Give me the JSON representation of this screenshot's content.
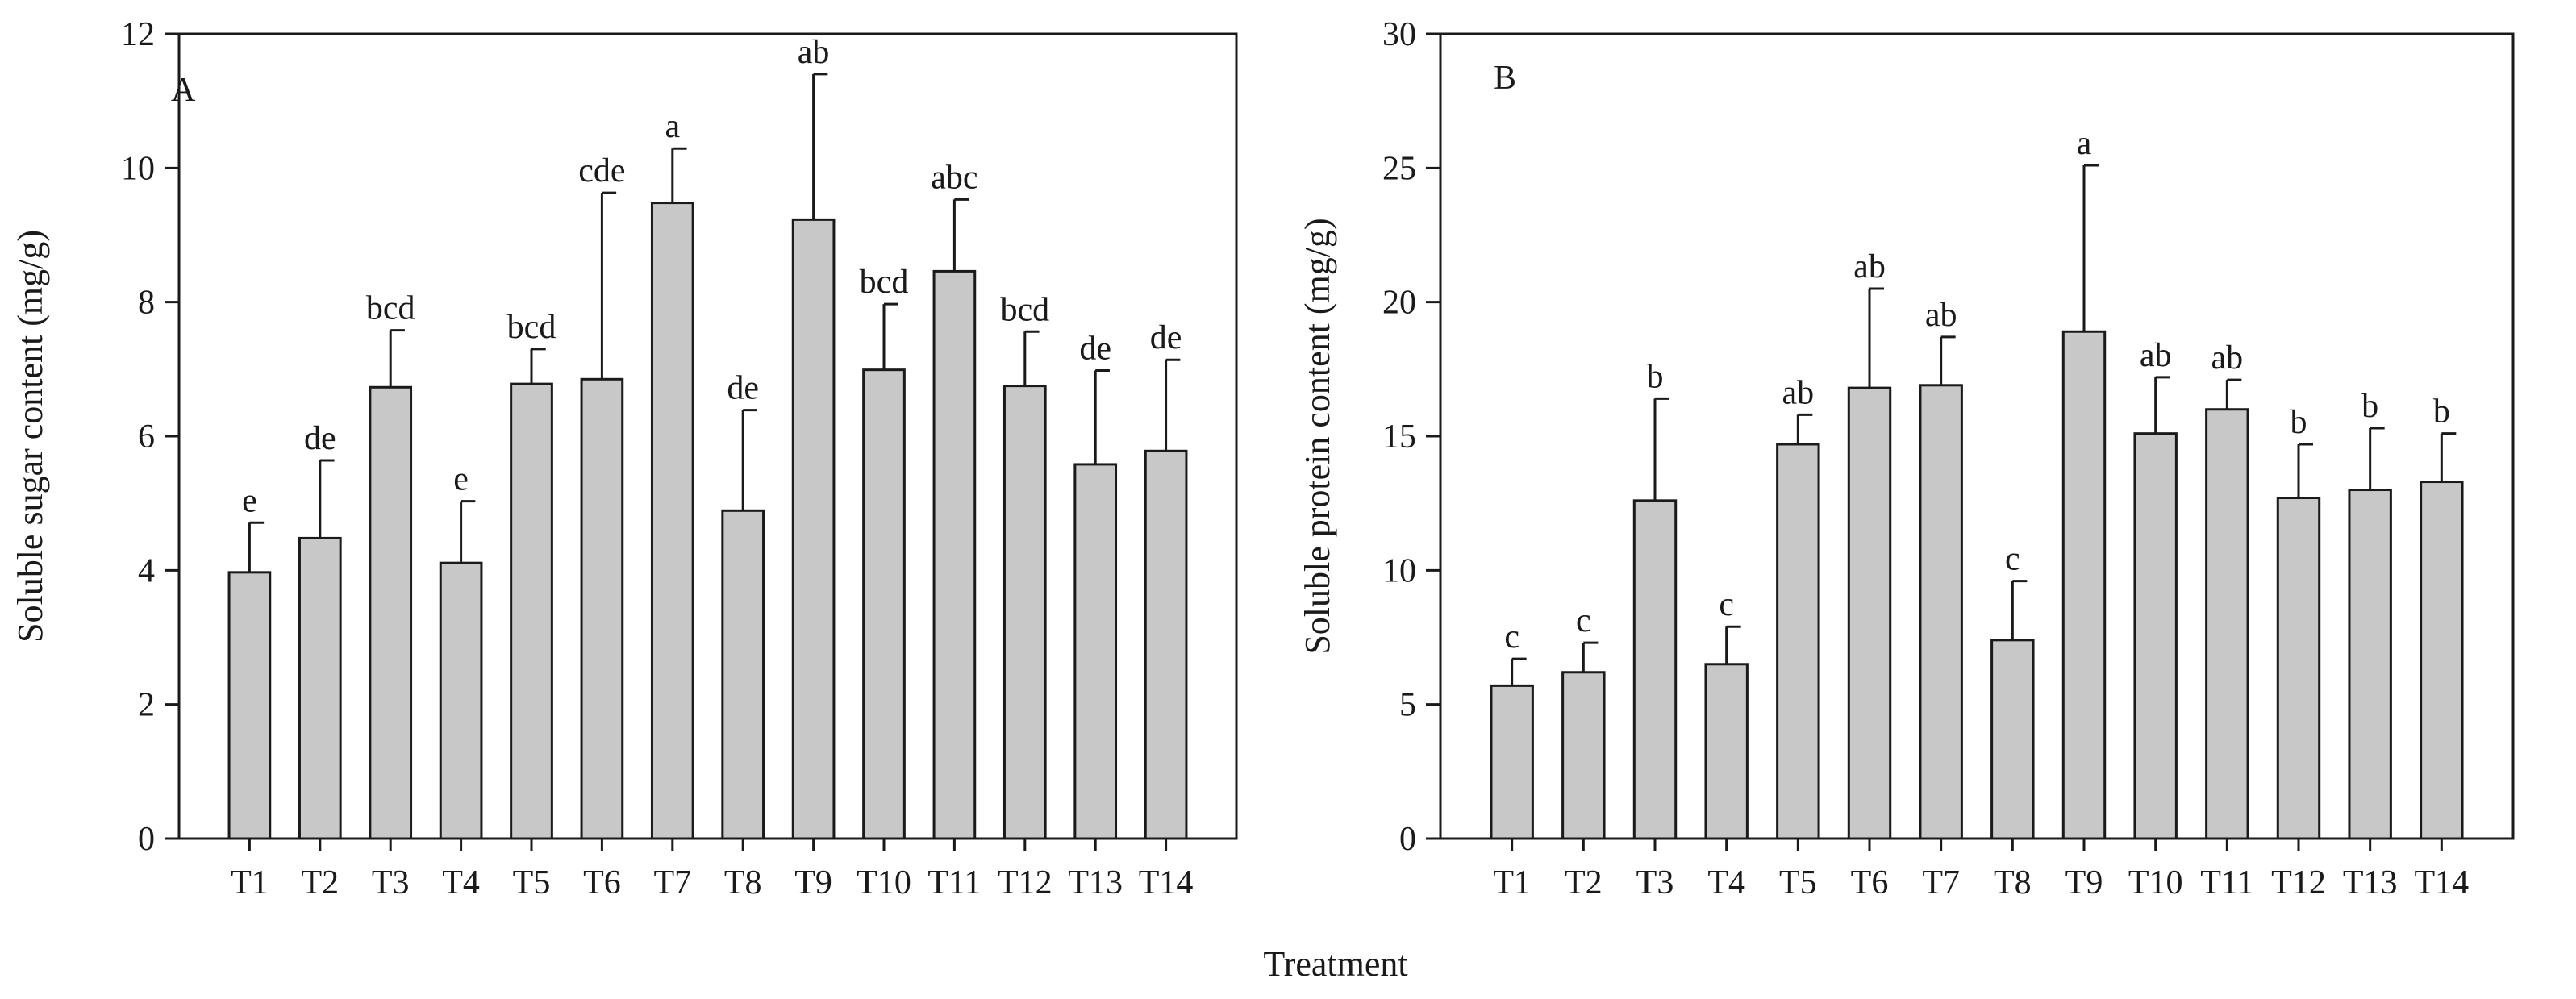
{
  "shared_xlabel": "Treatment",
  "chart_data": [
    {
      "type": "bar",
      "panel_label": "A",
      "ylabel": "Soluble  sugar content (mg/g)",
      "xlabel": "Treatment",
      "ylim": [
        0,
        12
      ],
      "yticks": [
        0,
        2,
        4,
        6,
        8,
        10,
        12
      ],
      "bar_color": "#c8c8c8",
      "categories": [
        "T1",
        "T2",
        "T3",
        "T4",
        "T5",
        "T6",
        "T7",
        "T8",
        "T9",
        "T10",
        "T11",
        "T12",
        "T13",
        "T14"
      ],
      "values": [
        3.97,
        4.48,
        6.73,
        4.11,
        6.78,
        6.85,
        9.48,
        4.89,
        9.23,
        6.99,
        8.46,
        6.75,
        5.58,
        5.78
      ],
      "errors": [
        0.74,
        1.16,
        0.85,
        0.92,
        0.52,
        2.78,
        0.81,
        1.5,
        2.17,
        0.98,
        1.07,
        0.81,
        1.4,
        1.36
      ],
      "significance": [
        "e",
        "de",
        "bcd",
        "e",
        "bcd",
        "cde",
        "a",
        "de",
        "ab",
        "bcd",
        "abc",
        "bcd",
        "de",
        "de"
      ]
    },
    {
      "type": "bar",
      "panel_label": "B",
      "ylabel": "Soluble  protein content (mg/g)",
      "xlabel": "Treatment",
      "ylim": [
        0,
        30
      ],
      "yticks": [
        0,
        5,
        10,
        15,
        20,
        25,
        30
      ],
      "bar_color": "#c8c8c8",
      "categories": [
        "T1",
        "T2",
        "T3",
        "T4",
        "T5",
        "T6",
        "T7",
        "T8",
        "T9",
        "T10",
        "T11",
        "T12",
        "T13",
        "T14"
      ],
      "values": [
        5.7,
        6.2,
        12.6,
        6.5,
        14.7,
        16.8,
        16.9,
        7.4,
        18.9,
        15.1,
        16.0,
        12.7,
        13.0,
        13.3
      ],
      "errors": [
        1.0,
        1.1,
        3.8,
        1.4,
        1.1,
        3.7,
        1.8,
        2.2,
        6.2,
        2.1,
        1.1,
        2.0,
        2.3,
        1.8
      ],
      "significance": [
        "c",
        "c",
        "b",
        "c",
        "ab",
        "ab",
        "ab",
        "c",
        "a",
        "ab",
        "ab",
        "b",
        "b",
        "b"
      ]
    }
  ]
}
